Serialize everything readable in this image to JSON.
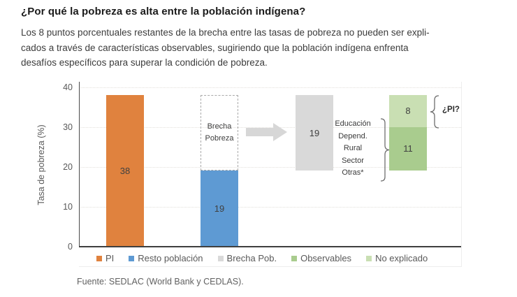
{
  "header": {
    "title": "¿Por qué la pobreza es alta entre la población indígena?",
    "body_lines": [
      "Los 8 puntos porcentuales restantes de la brecha entre las tasas de pobreza no pueden ser expli-",
      "cados a través de características observables, sugiriendo que la población indígena enfrenta",
      "desafíos específicos para superar la condición de pobreza."
    ]
  },
  "chart_data": {
    "type": "bar",
    "title": "",
    "xlabel": "",
    "ylabel": "Tasa de pobreza (%)",
    "ylim": [
      0,
      40
    ],
    "yticks": [
      0,
      10,
      20,
      30,
      40
    ],
    "grid": "dotted-horizontal",
    "legend_position": "bottom",
    "bars": [
      {
        "label": "PI",
        "base": 0,
        "value": 38,
        "color": "#E0823E"
      },
      {
        "label": "Resto población",
        "base": 0,
        "value": 19,
        "color": "#5E9AD3"
      },
      {
        "label": "Brecha Pob.",
        "base": 19,
        "value": 19,
        "color": "#D9D9D9"
      },
      {
        "label": "Observables",
        "base": 19,
        "value": 11,
        "color": "#A9CC8E"
      },
      {
        "label": "No explicado",
        "base": 30,
        "value": 8,
        "color": "#C9DFB3"
      }
    ],
    "annotations": {
      "gap_box": {
        "lines": [
          "Brecha",
          "Pobreza"
        ],
        "from": 19,
        "to": 38
      },
      "factors": [
        "Educación",
        "Depend.",
        "Rural",
        "Sector",
        "Otras*"
      ],
      "pi_question": "¿PI?"
    }
  },
  "footer": {
    "text": "Fuente: SEDLAC (World Bank y CEDLAS)."
  }
}
